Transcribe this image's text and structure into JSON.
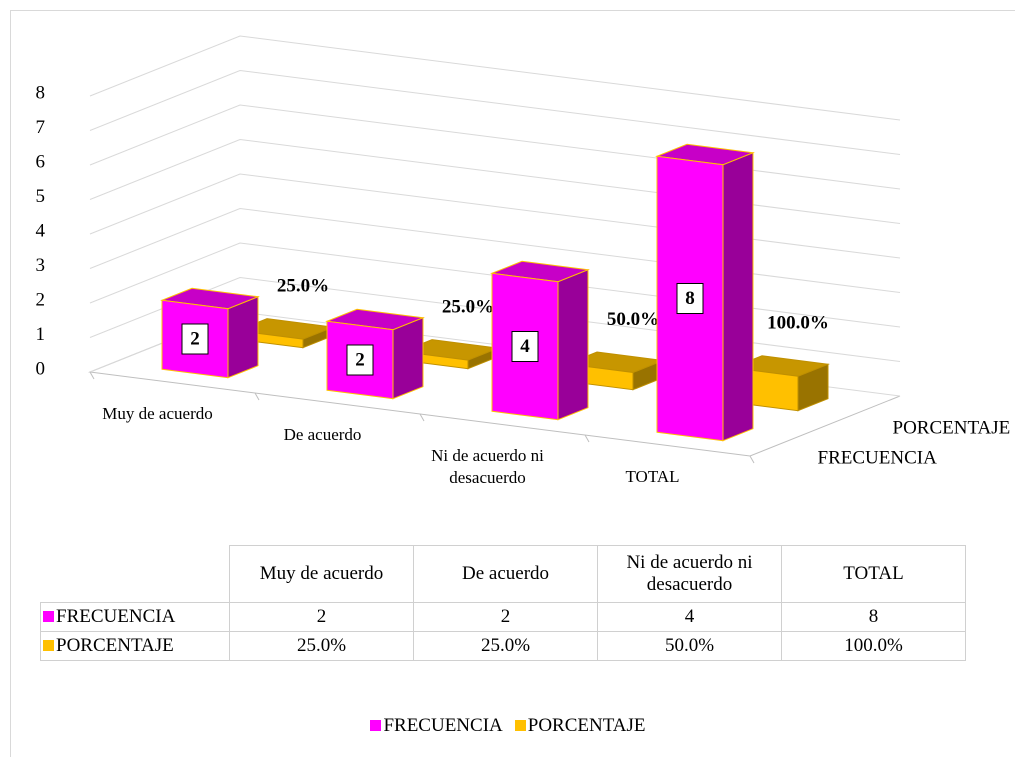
{
  "chart_data": {
    "type": "bar3d",
    "categories": [
      "Muy de acuerdo",
      "De acuerdo",
      "Ni de acuerdo ni desacuerdo",
      "TOTAL"
    ],
    "series": [
      {
        "name": "FRECUENCIA",
        "color": "#ff00ff",
        "values": [
          2,
          2,
          4,
          8
        ]
      },
      {
        "name": "PORCENTAJE",
        "color": "#ffc000",
        "values": [
          0.25,
          0.25,
          0.5,
          1
        ],
        "value_labels": [
          "25.0%",
          "25.0%",
          "50.0%",
          "100.0%"
        ]
      }
    ],
    "ylim": [
      0,
      8
    ],
    "yticks": [
      0,
      1,
      2,
      3,
      4,
      5,
      6,
      7,
      8
    ],
    "grid": true,
    "data_table": true,
    "legend": "bottom"
  }
}
